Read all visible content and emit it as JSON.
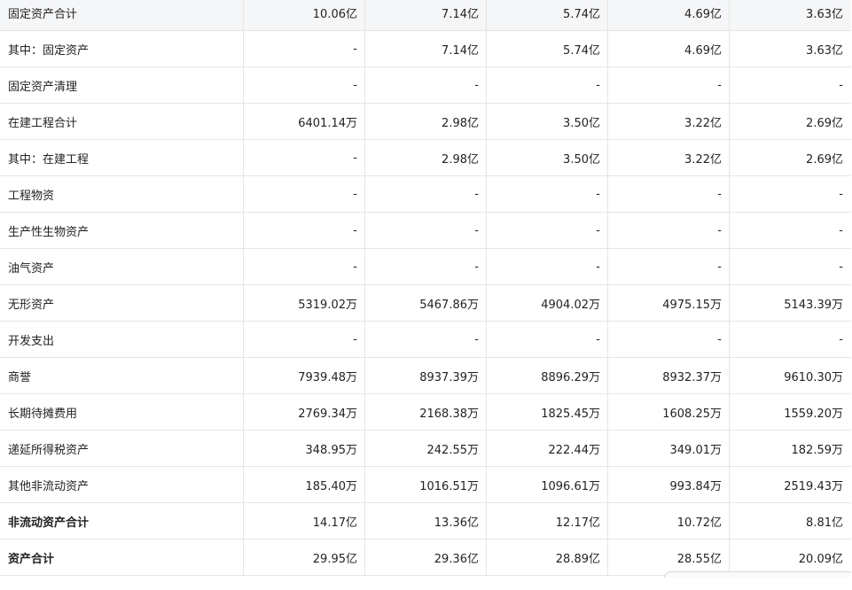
{
  "rows": [
    {
      "label": "固定资产合计",
      "values": [
        "10.06亿",
        "7.14亿",
        "5.74亿",
        "4.69亿",
        "3.63亿"
      ]
    },
    {
      "label": "其中：固定资产",
      "values": [
        "-",
        "7.14亿",
        "5.74亿",
        "4.69亿",
        "3.63亿"
      ]
    },
    {
      "label": "固定资产清理",
      "values": [
        "-",
        "-",
        "-",
        "-",
        "-"
      ]
    },
    {
      "label": "在建工程合计",
      "values": [
        "6401.14万",
        "2.98亿",
        "3.50亿",
        "3.22亿",
        "2.69亿"
      ]
    },
    {
      "label": "其中：在建工程",
      "values": [
        "-",
        "2.98亿",
        "3.50亿",
        "3.22亿",
        "2.69亿"
      ]
    },
    {
      "label": "工程物资",
      "values": [
        "-",
        "-",
        "-",
        "-",
        "-"
      ]
    },
    {
      "label": "生产性生物资产",
      "values": [
        "-",
        "-",
        "-",
        "-",
        "-"
      ]
    },
    {
      "label": "油气资产",
      "values": [
        "-",
        "-",
        "-",
        "-",
        "-"
      ]
    },
    {
      "label": "无形资产",
      "values": [
        "5319.02万",
        "5467.86万",
        "4904.02万",
        "4975.15万",
        "5143.39万"
      ]
    },
    {
      "label": "开发支出",
      "values": [
        "-",
        "-",
        "-",
        "-",
        "-"
      ]
    },
    {
      "label": "商誉",
      "values": [
        "7939.48万",
        "8937.39万",
        "8896.29万",
        "8932.37万",
        "9610.30万"
      ]
    },
    {
      "label": "长期待摊费用",
      "values": [
        "2769.34万",
        "2168.38万",
        "1825.45万",
        "1608.25万",
        "1559.20万"
      ]
    },
    {
      "label": "递延所得税资产",
      "values": [
        "348.95万",
        "242.55万",
        "222.44万",
        "349.01万",
        "182.59万"
      ]
    },
    {
      "label": "其他非流动资产",
      "values": [
        "185.40万",
        "1016.51万",
        "1096.61万",
        "993.84万",
        "2519.43万"
      ]
    },
    {
      "label": "非流动资产合计",
      "values": [
        "14.17亿",
        "13.36亿",
        "12.17亿",
        "10.72亿",
        "8.81亿"
      ]
    },
    {
      "label": "资产合计",
      "values": [
        "29.95亿",
        "29.36亿",
        "28.89亿",
        "28.55亿",
        "20.09亿"
      ]
    }
  ],
  "colors": {
    "shaded_row": "#f5f6f8",
    "border": "#e5e5e5",
    "text": "#222222"
  }
}
